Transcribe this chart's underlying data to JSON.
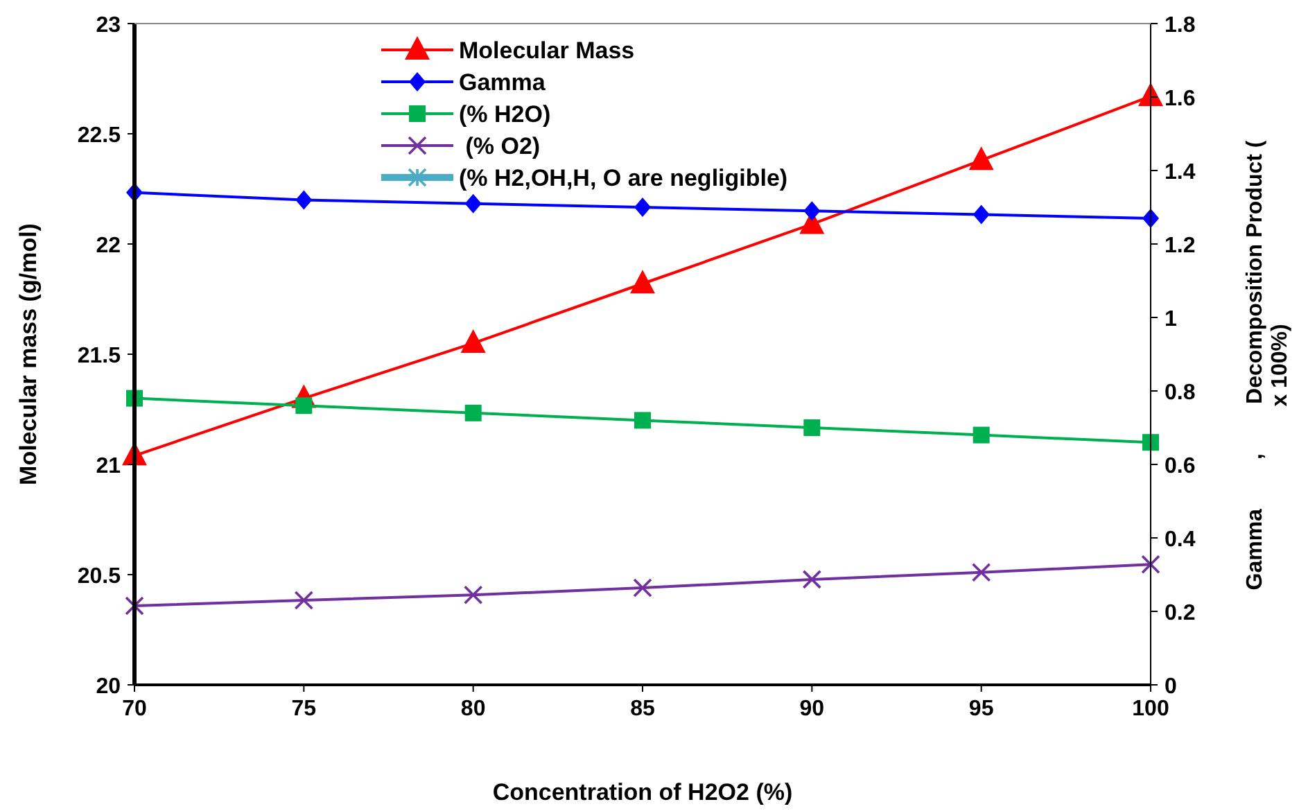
{
  "chart_data": {
    "type": "line",
    "xlabel": "Concentration of H2O2 (%)",
    "ylabel": "Molecular mass (g/mol)",
    "y2label": "Gamma        ,        Decomposition Product (\nx 100%)",
    "x": [
      70,
      75,
      80,
      85,
      90,
      95,
      100
    ],
    "xlim": [
      70,
      100
    ],
    "xticks": [
      70,
      75,
      80,
      85,
      90,
      95,
      100
    ],
    "ylim": [
      20,
      23
    ],
    "yticks": [
      20,
      20.5,
      21,
      21.5,
      22,
      22.5,
      23
    ],
    "y2lim": [
      0,
      1.8
    ],
    "y2ticks": [
      0,
      0.2,
      0.4,
      0.6,
      0.8,
      1,
      1.2,
      1.4,
      1.6,
      1.8
    ],
    "grid": false,
    "legend": "top",
    "line_style": "solid",
    "series": [
      {
        "name": "Molecular Mass",
        "color": "#ff0000",
        "marker": "triangle",
        "values": [
          21.04,
          21.3,
          21.55,
          21.82,
          22.09,
          22.38,
          22.67
        ]
      },
      {
        "name": "Gamma",
        "color": "#0000ff",
        "marker": "diamond",
        "axis": "y2",
        "values": [
          1.34,
          1.32,
          1.31,
          1.3,
          1.29,
          1.28,
          1.27
        ]
      },
      {
        "name": "(% H2O)",
        "color": "#00b050",
        "marker": "square",
        "axis": "y2",
        "values": [
          0.78,
          0.76,
          0.74,
          0.72,
          0.7,
          0.68,
          0.66
        ]
      },
      {
        "name": " (% O2)",
        "color": "#7030a0",
        "marker": "cross",
        "axis": "y2",
        "values": [
          0.215,
          0.23,
          0.245,
          0.264,
          0.287,
          0.306,
          0.328
        ]
      },
      {
        "name": "(% H2,OH,H, O are negligible)",
        "color": "#4bacc6",
        "marker": "star",
        "axis": "y2",
        "values": [
          null,
          null,
          null,
          null,
          null,
          null,
          null
        ]
      }
    ]
  }
}
